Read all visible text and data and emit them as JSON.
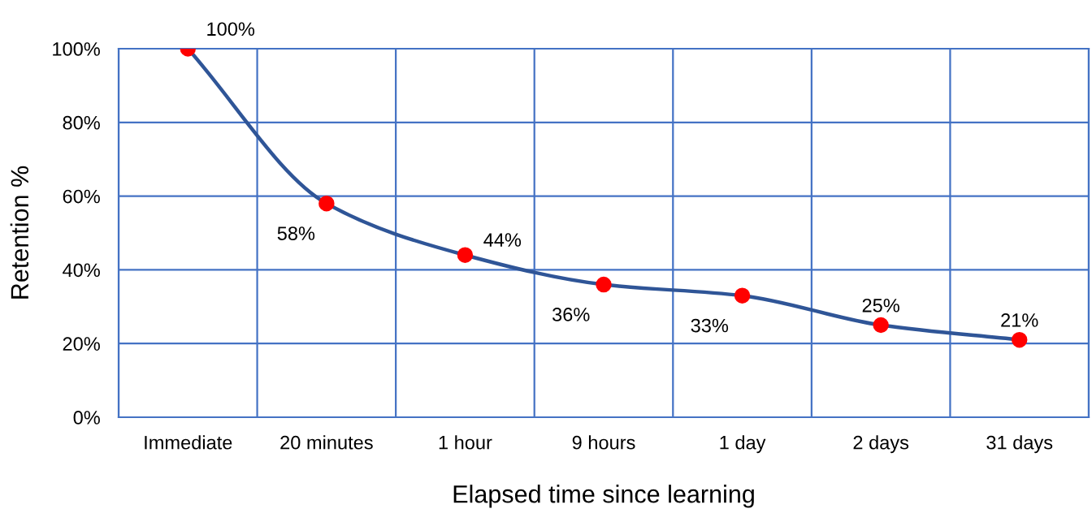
{
  "chart_data": {
    "type": "line",
    "xlabel": "Elapsed time since learning",
    "ylabel": "Retention %",
    "categories": [
      "Immediate",
      "20 minutes",
      "1 hour",
      "9 hours",
      "1 day",
      "2 days",
      "31 days"
    ],
    "series": [
      {
        "color": "#2f5597",
        "colors": [
          "#ff0000",
          "#ff0000",
          "#ff0000",
          "#ff0000",
          "#ff0000",
          "#ff0000",
          "#ff0000"
        ],
        "values": [
          100,
          58,
          44,
          36,
          33,
          25,
          21
        ],
        "value_labels": [
          "100%",
          "58%",
          "44%",
          "36%",
          "33%",
          "25%",
          "21%"
        ]
      }
    ],
    "marker": "circle",
    "grid": true,
    "ylim": [
      0,
      100
    ],
    "yticks": [
      {
        "value": 0,
        "label": "0%"
      },
      {
        "value": 20,
        "label": "20%"
      },
      {
        "value": 40,
        "label": "40%"
      },
      {
        "value": 60,
        "label": "60%"
      },
      {
        "value": 80,
        "label": "80%"
      },
      {
        "value": 100,
        "label": "100%"
      }
    ]
  }
}
